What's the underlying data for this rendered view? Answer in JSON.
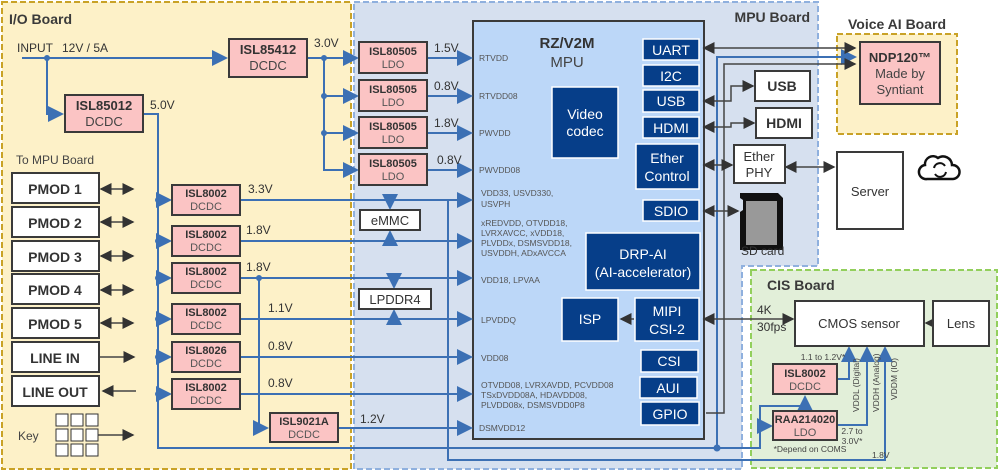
{
  "boards": {
    "io": "I/O Board",
    "mpu": "MPU Board",
    "voice": "Voice AI Board",
    "cis": "CIS Board"
  },
  "power": {
    "input": "INPUT",
    "input_rating": "12V / 5A",
    "isl85412": {
      "name": "ISL85412",
      "type": "DCDC",
      "out": "3.0V"
    },
    "isl85012": {
      "name": "ISL85012",
      "type": "DCDC",
      "out": "5.0V"
    },
    "ldos": [
      {
        "name": "ISL80505",
        "type": "LDO",
        "out": "1.5V",
        "pin": "RTVDD"
      },
      {
        "name": "ISL80505",
        "type": "LDO",
        "out": "0.8V",
        "pin": "RTVDD08"
      },
      {
        "name": "ISL80505",
        "type": "LDO",
        "out": "1.8V",
        "pin": "PWVDD"
      },
      {
        "name": "ISL80505",
        "type": "LDO",
        "out": "0.8V",
        "pin": "PWVDD08"
      }
    ],
    "dcdcs": [
      {
        "name": "ISL8002",
        "type": "DCDC",
        "out": "3.3V",
        "pin": [
          "VDD33, USVD330,",
          "USVPH"
        ]
      },
      {
        "name": "ISL8002",
        "type": "DCDC",
        "out": "1.8V",
        "pin": [
          "xREDVDD, OTVDD18,",
          "LVRXAVCC, xVDD18,",
          "PLVDDx, DSMSVDD18,",
          "USVDDH, ADxAVCCA"
        ]
      },
      {
        "name": "ISL8002",
        "type": "DCDC",
        "out": "1.8V",
        "pin": [
          "VDD18, LPVAA"
        ]
      },
      {
        "name": "ISL8002",
        "type": "DCDC",
        "out": "1.1V",
        "pin": [
          "LPVDDQ"
        ]
      },
      {
        "name": "ISL8026",
        "type": "DCDC",
        "out": "0.8V",
        "pin": [
          "VDD08"
        ]
      },
      {
        "name": "ISL8002",
        "type": "DCDC",
        "out": "0.8V",
        "pin": [
          "OTVDD08, LVRXAVDD, PCVDD08",
          "TSxDVDD08A, HDAVDD08,",
          "PLVDD08x, DSMSVDD0P8"
        ]
      }
    ],
    "isl9021a": {
      "name": "ISL9021A",
      "type": "DCDC",
      "out": "1.2V",
      "pin": "DSMVDD12"
    }
  },
  "io": {
    "to_mpu": "To MPU Board",
    "ports": [
      "PMOD 1",
      "PMOD 2",
      "PMOD 3",
      "PMOD 4",
      "PMOD 5",
      "LINE IN",
      "LINE OUT"
    ],
    "key": "Key"
  },
  "memory": {
    "emmc": "eMMC",
    "lpddr4": "LPDDR4"
  },
  "mpu": {
    "name": "RZ/V2M",
    "sub": "MPU",
    "blocks": {
      "uart": "UART",
      "i2c": "I2C",
      "usb": "USB",
      "hdmi": "HDMI",
      "ether1": "Ether",
      "ether2": "Control",
      "sdio": "SDIO",
      "video1": "Video",
      "video2": "codec",
      "drp1": "DRP-AI",
      "drp2": "(AI-accelerator)",
      "isp": "ISP",
      "mipi1": "MIPI",
      "mipi2": "CSI-2",
      "csi": "CSI",
      "aui": "AUI",
      "gpio": "GPIO"
    }
  },
  "peripherals": {
    "usb": "USB",
    "hdmi": "HDMI",
    "phy1": "Ether",
    "phy2": "PHY",
    "sd": "SD card",
    "server": "Server"
  },
  "voice": {
    "chip": "NDP120™",
    "l2": "Made by",
    "l3": "Syntiant"
  },
  "cis": {
    "stream1": "4K",
    "stream2": "30fps",
    "sensor": "CMOS sensor",
    "lens": "Lens",
    "isl8002": {
      "name": "ISL8002",
      "type": "DCDC",
      "out": "1.1 to 1.2V*"
    },
    "raa": {
      "name": "RAA214020",
      "type": "LDO",
      "out1": "2.7 to",
      "out2": "3.0V*"
    },
    "note": "*Depend on COMS",
    "vio": "1.8V",
    "rails": [
      "VDDL (Digital)",
      "VDDH (Analog)",
      "VDDM (IO)"
    ]
  },
  "colors": {
    "io_bg": "#fdf1c8",
    "mpu_bg": "#d6e0ef",
    "cis_bg": "#e2efd9",
    "chip": "#bcd7f8",
    "block": "#063e89",
    "power": "#fbc4c4",
    "rail": "#3c70b4"
  }
}
